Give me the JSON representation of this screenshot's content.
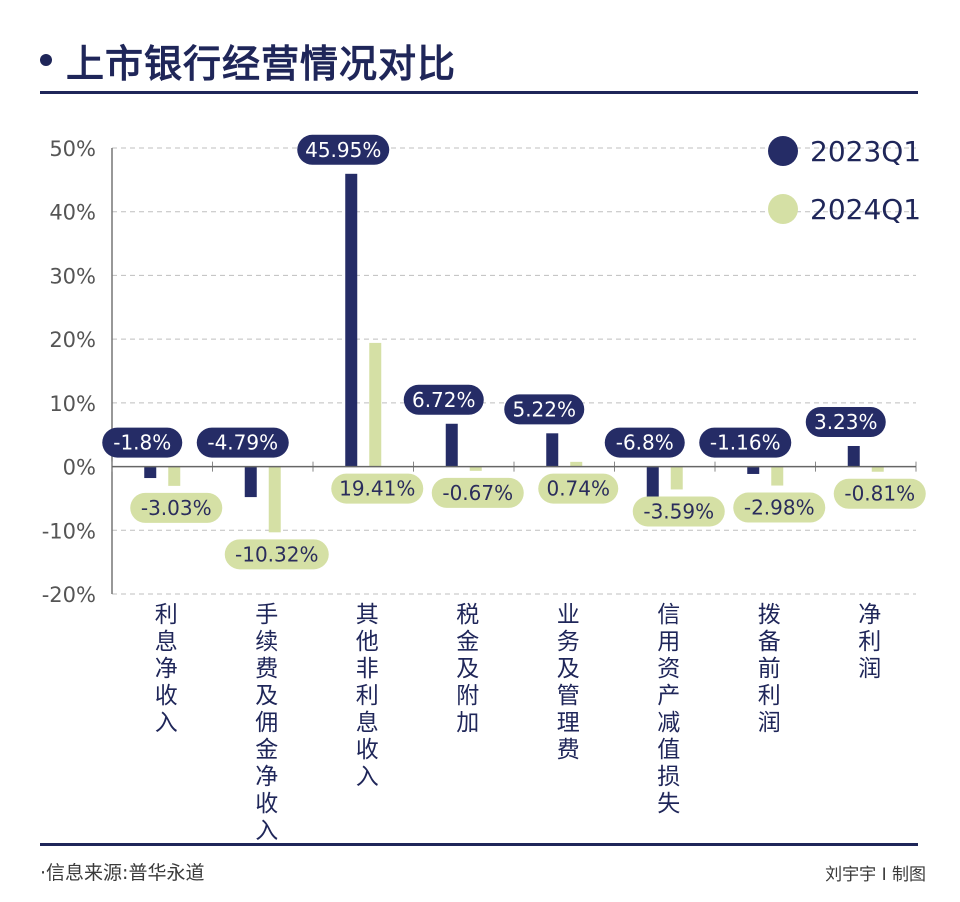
{
  "title": "上市银行经营情况对比",
  "source": "·信息来源:普华永道",
  "credit": "刘宇宇 I 制图",
  "colors": {
    "series1": "#252c66",
    "series2": "#d5e0a5",
    "grid": "#bfbfbf",
    "axis": "#1f2659"
  },
  "chart_data": {
    "type": "bar",
    "categories": [
      "利息净收入",
      "手续费及佣金净收入",
      "其他非利息收入",
      "税金及附加",
      "业务及管理费",
      "信用资产减值损失",
      "拨备前利润",
      "净利润"
    ],
    "series": [
      {
        "name": "2023Q1",
        "values": [
          -1.8,
          -4.79,
          45.95,
          6.72,
          5.22,
          -6.8,
          -1.16,
          3.23
        ],
        "labels": [
          "-1.8%",
          "-4.79%",
          "45.95%",
          "6.72%",
          "5.22%",
          "-6.8%",
          "-1.16%",
          "3.23%"
        ]
      },
      {
        "name": "2024Q1",
        "values": [
          -3.03,
          -10.32,
          19.41,
          -0.67,
          0.74,
          -3.59,
          -2.98,
          -0.81
        ],
        "labels": [
          "-3.03%",
          "-10.32%",
          "19.41%",
          "-0.67%",
          "0.74%",
          "-3.59%",
          "-2.98%",
          "-0.81%"
        ]
      }
    ],
    "ylim": [
      -20,
      50
    ],
    "yticks": [
      "50%",
      "40%",
      "30%",
      "20%",
      "10%",
      "0%",
      "-10%",
      "-20%"
    ],
    "grid": true,
    "legend_position": "top-right"
  }
}
